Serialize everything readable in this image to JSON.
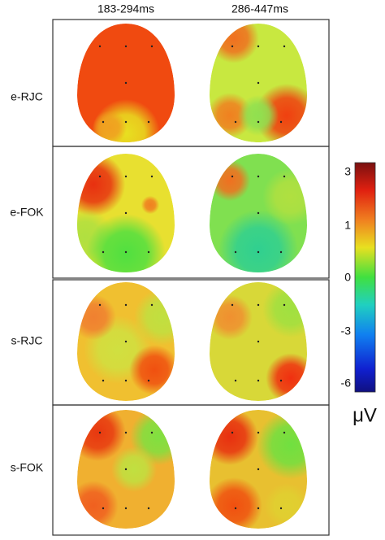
{
  "columns": [
    "183-294ms",
    "286-447ms"
  ],
  "rows": [
    "e-RJC",
    "e-FOK",
    "s-RJC",
    "s-FOK"
  ],
  "colorbar": {
    "ticks": [
      "3",
      "1",
      "0",
      "-3",
      "-6"
    ],
    "unit": "μV"
  }
}
